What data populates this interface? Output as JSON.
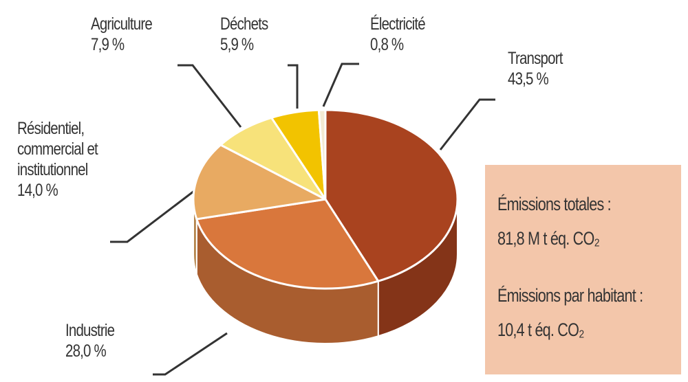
{
  "chart_data": {
    "type": "pie",
    "categories": [
      "Transport",
      "Industrie",
      "Résidentiel, commercial et institutionnel",
      "Agriculture",
      "Déchets",
      "Électricité"
    ],
    "values": [
      43.5,
      28.0,
      14.0,
      7.9,
      5.9,
      0.8
    ],
    "value_labels": [
      "43,5 %",
      "28,0 %",
      "14,0 %",
      "7,9 %",
      "5,9 %",
      "0,8 %"
    ],
    "colors": [
      "#a9431f",
      "#d9773c",
      "#e8aa62",
      "#f7e27a",
      "#f2c300",
      "#f3ead2"
    ],
    "annotations": [
      "Émissions totales :",
      "81,8 M t éq. CO₂",
      "Émissions par habitant :",
      "10,4 t éq. CO₂"
    ]
  }
}
